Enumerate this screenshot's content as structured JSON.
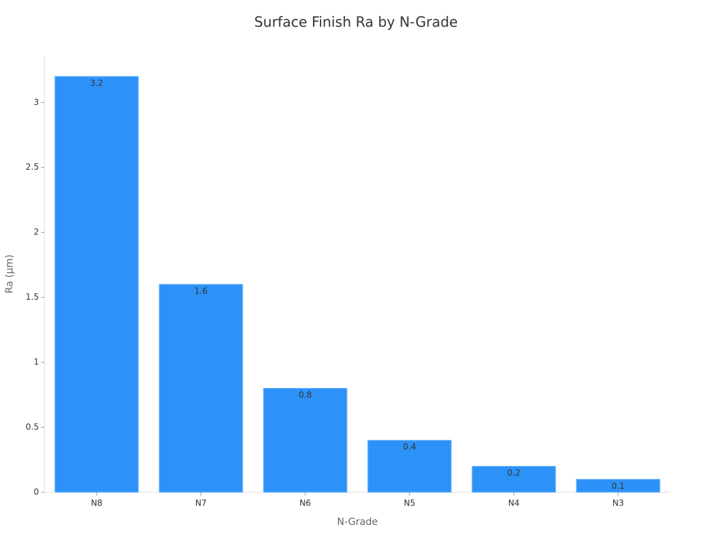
{
  "chart_data": {
    "type": "bar",
    "title": "Surface Finish Ra by N-Grade",
    "x_label": "N-Grade",
    "y_label": "Ra (μm)",
    "categories": [
      "N8",
      "N7",
      "N6",
      "N5",
      "N4",
      "N3"
    ],
    "values": [
      3.2,
      1.6,
      0.8,
      0.4,
      0.2,
      0.1
    ],
    "color": "#2d92f8",
    "ylim": [
      0,
      3.36
    ],
    "yticks": [
      0,
      0.5,
      1,
      1.5,
      2,
      2.5,
      3
    ],
    "grid": false
  }
}
